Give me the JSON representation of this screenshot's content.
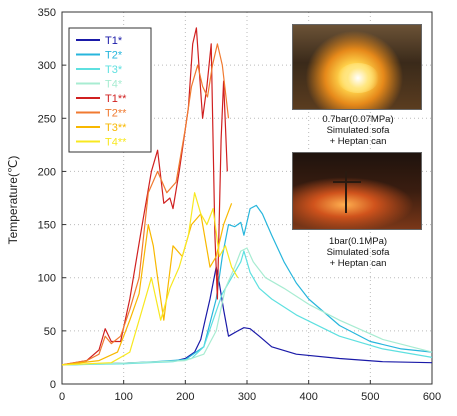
{
  "chart_data": {
    "type": "line",
    "xlabel": "",
    "ylabel": "Temperature(℃)",
    "xlim": [
      0,
      600
    ],
    "ylim": [
      0,
      350
    ],
    "xticks": [
      "0",
      "100",
      "200",
      "300",
      "400",
      "500",
      "600"
    ],
    "yticks": [
      "0",
      "50",
      "100",
      "150",
      "200",
      "250",
      "300",
      "350"
    ],
    "grid": "dotted",
    "legend_position": "top-left",
    "series": [
      {
        "name": "T1*",
        "color": "#1a1aa8",
        "x": [
          0,
          60,
          120,
          160,
          185,
          200,
          215,
          225,
          232,
          240,
          250,
          255,
          262,
          270,
          285,
          295,
          305,
          320,
          340,
          380,
          450,
          520,
          600
        ],
        "y": [
          18,
          19,
          20,
          21,
          22,
          24,
          30,
          42,
          60,
          80,
          110,
          95,
          70,
          45,
          50,
          53,
          52,
          45,
          35,
          28,
          24,
          21,
          20
        ]
      },
      {
        "name": "T2*",
        "color": "#27b6dc",
        "x": [
          0,
          80,
          150,
          200,
          230,
          250,
          260,
          270,
          280,
          290,
          295,
          305,
          315,
          325,
          340,
          360,
          380,
          400,
          450,
          500,
          550,
          600
        ],
        "y": [
          18,
          19,
          21,
          23,
          35,
          80,
          120,
          150,
          148,
          152,
          140,
          165,
          168,
          160,
          140,
          115,
          95,
          80,
          55,
          40,
          33,
          30
        ]
      },
      {
        "name": "T3*",
        "color": "#5ee0e0",
        "x": [
          0,
          100,
          180,
          210,
          230,
          245,
          260,
          275,
          290,
          295,
          305,
          320,
          340,
          380,
          450,
          520,
          600
        ],
        "y": [
          18,
          19,
          21,
          24,
          35,
          60,
          85,
          100,
          115,
          125,
          105,
          90,
          80,
          65,
          45,
          33,
          25
        ]
      },
      {
        "name": "T4*",
        "color": "#a8ecd2",
        "x": [
          0,
          120,
          200,
          230,
          250,
          265,
          280,
          290,
          300,
          310,
          330,
          360,
          400,
          450,
          520,
          600
        ],
        "y": [
          18,
          20,
          22,
          28,
          50,
          90,
          110,
          125,
          128,
          115,
          100,
          90,
          75,
          60,
          42,
          30
        ]
      },
      {
        "name": "T1**",
        "color": "#d02020",
        "x": [
          0,
          40,
          60,
          70,
          80,
          95,
          110,
          130,
          145,
          155,
          165,
          175,
          180,
          190,
          205,
          212,
          218,
          222,
          228,
          235,
          242,
          248,
          252,
          258,
          262,
          268
        ],
        "y": [
          18,
          22,
          32,
          52,
          40,
          40,
          80,
          150,
          200,
          220,
          170,
          175,
          165,
          200,
          260,
          320,
          335,
          300,
          250,
          280,
          320,
          140,
          80,
          230,
          285,
          200
        ]
      },
      {
        "name": "T2**",
        "color": "#f07a30",
        "x": [
          0,
          40,
          60,
          70,
          80,
          95,
          110,
          125,
          140,
          155,
          170,
          185,
          200,
          210,
          220,
          228,
          236,
          244,
          252,
          260,
          270
        ],
        "y": [
          18,
          22,
          28,
          45,
          38,
          45,
          70,
          100,
          180,
          200,
          180,
          190,
          240,
          280,
          300,
          280,
          270,
          300,
          320,
          300,
          250
        ]
      },
      {
        "name": "T3**",
        "color": "#f8b800",
        "x": [
          0,
          60,
          90,
          110,
          125,
          140,
          148,
          155,
          165,
          180,
          195,
          210,
          225,
          240,
          250,
          262,
          275
        ],
        "y": [
          18,
          22,
          30,
          60,
          85,
          150,
          130,
          100,
          60,
          130,
          120,
          150,
          160,
          110,
          120,
          150,
          170
        ]
      },
      {
        "name": "T4**",
        "color": "#f8e820",
        "x": [
          0,
          80,
          110,
          130,
          145,
          160,
          175,
          190,
          205,
          215,
          225,
          235,
          245,
          255,
          265,
          275,
          285
        ],
        "y": [
          18,
          20,
          30,
          70,
          100,
          60,
          90,
          110,
          140,
          180,
          160,
          150,
          165,
          120,
          130,
          110,
          100
        ]
      }
    ],
    "annotations": [
      "0.7bar(0.07MPa)\nSimulated sofa\n+ Heptan can",
      "1bar(0.1MPa)\nSimulated sofa\n+ Heptan can"
    ]
  }
}
